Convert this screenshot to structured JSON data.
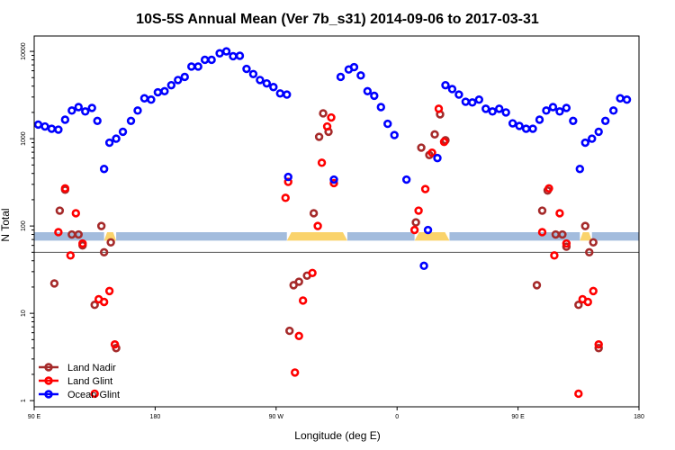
{
  "chart_data": {
    "type": "scatter",
    "title": "10S-5S Annual Mean (Ver 7b_s31)   2014-09-06 to 2017-03-31",
    "xlabel": "Longitude (deg E)",
    "ylabel": "N Total",
    "y_scale": "log",
    "ylim": [
      0.85,
      15000
    ],
    "xlim": [
      90,
      540
    ],
    "x_ticks": [
      {
        "value": 90,
        "label": "90 E"
      },
      {
        "value": 180,
        "label": "180"
      },
      {
        "value": 270,
        "label": "90 W"
      },
      {
        "value": 360,
        "label": "0"
      },
      {
        "value": 450,
        "label": "90 E"
      },
      {
        "value": 540,
        "label": "180"
      }
    ],
    "y_ticks": [
      {
        "value": 1,
        "label": "1"
      },
      {
        "value": 10,
        "label": "10"
      },
      {
        "value": 100,
        "label": "100"
      },
      {
        "value": 1000,
        "label": "1000"
      },
      {
        "value": 10000,
        "label": "10000"
      }
    ],
    "reference_line": 50,
    "legend_position": "bottom-left",
    "colors": {
      "band_blue": "#a3bcdd",
      "band_yellow": "#fad36b",
      "ref_line": "#555555"
    },
    "series": [
      {
        "name": "Land Nadir",
        "color": "#a52a2a",
        "points": [
          [
            105,
            22
          ],
          [
            109,
            150
          ],
          [
            113,
            260
          ],
          [
            118,
            80
          ],
          [
            123,
            80
          ],
          [
            126,
            60
          ],
          [
            135,
            12.5
          ],
          [
            140,
            100
          ],
          [
            142,
            50
          ],
          [
            147,
            65
          ],
          [
            151,
            4
          ],
          [
            280,
            6.3
          ],
          [
            283,
            21
          ],
          [
            287,
            23
          ],
          [
            293,
            27
          ],
          [
            298,
            140
          ],
          [
            302,
            1050
          ],
          [
            305,
            1950
          ],
          [
            309,
            1200
          ],
          [
            374,
            110
          ],
          [
            378,
            790
          ],
          [
            384,
            650
          ],
          [
            388,
            1120
          ],
          [
            392,
            1900
          ],
          [
            396,
            960
          ],
          [
            464,
            21
          ],
          [
            468,
            150
          ],
          [
            472,
            255
          ],
          [
            478,
            80
          ],
          [
            483,
            80
          ],
          [
            486,
            58
          ],
          [
            495,
            12.5
          ],
          [
            500,
            100
          ],
          [
            503,
            50
          ],
          [
            506,
            65
          ],
          [
            510,
            4
          ]
        ]
      },
      {
        "name": "Land Glint",
        "color": "#ff0000",
        "points": [
          [
            108,
            85
          ],
          [
            113,
            270
          ],
          [
            117,
            46
          ],
          [
            121,
            140
          ],
          [
            126,
            63
          ],
          [
            135,
            1.2
          ],
          [
            138,
            14.5
          ],
          [
            142,
            13.5
          ],
          [
            146,
            18
          ],
          [
            150,
            4.4
          ],
          [
            277,
            210
          ],
          [
            279,
            320
          ],
          [
            284,
            2.1
          ],
          [
            287,
            5.5
          ],
          [
            290,
            14
          ],
          [
            297,
            29
          ],
          [
            301,
            100
          ],
          [
            304,
            530
          ],
          [
            308,
            1380
          ],
          [
            311,
            1750
          ],
          [
            313,
            310
          ],
          [
            373,
            90
          ],
          [
            376,
            150
          ],
          [
            381,
            265
          ],
          [
            386,
            690
          ],
          [
            391,
            2200
          ],
          [
            395,
            920
          ],
          [
            468,
            85
          ],
          [
            473,
            270
          ],
          [
            477,
            46
          ],
          [
            481,
            140
          ],
          [
            486,
            63
          ],
          [
            495,
            1.2
          ],
          [
            498,
            14.5
          ],
          [
            502,
            13.5
          ],
          [
            506,
            18
          ],
          [
            510,
            4.4
          ]
        ]
      },
      {
        "name": "Ocean Glint",
        "color": "#0000ff",
        "points": [
          [
            93,
            1450
          ],
          [
            98,
            1380
          ],
          [
            103,
            1300
          ],
          [
            108,
            1270
          ],
          [
            113,
            1650
          ],
          [
            118,
            2100
          ],
          [
            123,
            2300
          ],
          [
            128,
            2050
          ],
          [
            133,
            2250
          ],
          [
            137,
            1600
          ],
          [
            142,
            450
          ],
          [
            146,
            900
          ],
          [
            151,
            1000
          ],
          [
            156,
            1200
          ],
          [
            162,
            1600
          ],
          [
            167,
            2100
          ],
          [
            172,
            2900
          ],
          [
            177,
            2800
          ],
          [
            182,
            3400
          ],
          [
            187,
            3500
          ],
          [
            192,
            4100
          ],
          [
            197,
            4700
          ],
          [
            202,
            5100
          ],
          [
            207,
            6700
          ],
          [
            212,
            6700
          ],
          [
            217,
            8000
          ],
          [
            222,
            8000
          ],
          [
            228,
            9500
          ],
          [
            233,
            10000
          ],
          [
            238,
            8800
          ],
          [
            243,
            8900
          ],
          [
            248,
            6300
          ],
          [
            253,
            5500
          ],
          [
            258,
            4700
          ],
          [
            263,
            4300
          ],
          [
            268,
            3900
          ],
          [
            273,
            3300
          ],
          [
            278,
            3200
          ],
          [
            279,
            365
          ],
          [
            313,
            340
          ],
          [
            318,
            5100
          ],
          [
            324,
            6200
          ],
          [
            328,
            6600
          ],
          [
            333,
            5300
          ],
          [
            338,
            3500
          ],
          [
            343,
            3100
          ],
          [
            348,
            2300
          ],
          [
            353,
            1480
          ],
          [
            358,
            1100
          ],
          [
            367,
            340
          ],
          [
            380,
            35
          ],
          [
            383,
            90
          ],
          [
            390,
            600
          ],
          [
            396,
            4100
          ],
          [
            401,
            3700
          ],
          [
            406,
            3200
          ],
          [
            411,
            2650
          ],
          [
            416,
            2600
          ],
          [
            421,
            2800
          ],
          [
            426,
            2200
          ],
          [
            431,
            2050
          ],
          [
            436,
            2200
          ],
          [
            441,
            2000
          ],
          [
            446,
            1500
          ],
          [
            451,
            1400
          ],
          [
            456,
            1300
          ],
          [
            461,
            1300
          ],
          [
            466,
            1650
          ],
          [
            471,
            2100
          ],
          [
            476,
            2300
          ],
          [
            481,
            2050
          ],
          [
            486,
            2250
          ],
          [
            491,
            1600
          ],
          [
            496,
            450
          ],
          [
            500,
            900
          ],
          [
            505,
            1000
          ],
          [
            510,
            1200
          ],
          [
            515,
            1600
          ],
          [
            521,
            2100
          ],
          [
            526,
            2900
          ],
          [
            531,
            2800
          ]
        ]
      }
    ],
    "bands": [
      {
        "from": 90,
        "to": 142,
        "color": "blue"
      },
      {
        "from": 142,
        "to": 151,
        "color": "yellow"
      },
      {
        "from": 151,
        "to": 278,
        "color": "blue"
      },
      {
        "from": 278,
        "to": 323,
        "color": "yellow"
      },
      {
        "from": 323,
        "to": 373,
        "color": "blue"
      },
      {
        "from": 373,
        "to": 399,
        "color": "yellow"
      },
      {
        "from": 399,
        "to": 496,
        "color": "blue"
      },
      {
        "from": 496,
        "to": 505,
        "color": "yellow"
      },
      {
        "from": 505,
        "to": 540,
        "color": "blue"
      }
    ]
  }
}
